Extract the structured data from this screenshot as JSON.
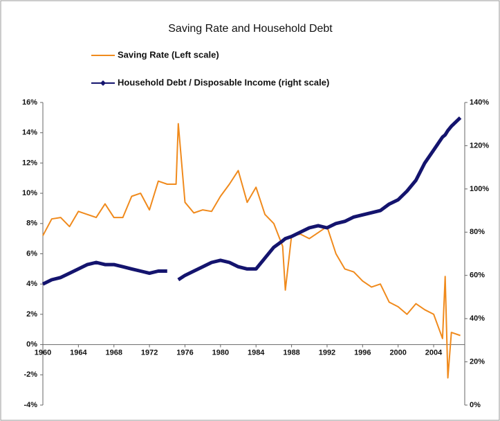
{
  "chart_data": {
    "type": "line",
    "title": "Saving Rate and Household Debt",
    "x": [
      1960,
      1961,
      1962,
      1963,
      1964,
      1965,
      1966,
      1967,
      1968,
      1969,
      1970,
      1971,
      1972,
      1973,
      1974,
      1975,
      1975.25,
      1976,
      1977,
      1978,
      1979,
      1980,
      1981,
      1982,
      1983,
      1984,
      1985,
      1986,
      1987,
      1987.3,
      1988,
      1989,
      1990,
      1991,
      1992,
      1993,
      1994,
      1995,
      1996,
      1997,
      1998,
      1999,
      2000,
      2001,
      2002,
      2003,
      2004,
      2005,
      2005.3,
      2005.6,
      2006,
      2007
    ],
    "xlim": [
      1960,
      2007.5
    ],
    "xticks": [
      1960,
      1964,
      1968,
      1972,
      1976,
      1980,
      1984,
      1988,
      1992,
      1996,
      2000,
      2004
    ],
    "ylim": [
      -4,
      16
    ],
    "yticks": [
      {
        "value": -4,
        "label": "-4%"
      },
      {
        "value": -2,
        "label": "-2%"
      },
      {
        "value": 0,
        "label": "0%"
      },
      {
        "value": 2,
        "label": "2%"
      },
      {
        "value": 4,
        "label": "4%"
      },
      {
        "value": 6,
        "label": "6%"
      },
      {
        "value": 8,
        "label": "8%"
      },
      {
        "value": 10,
        "label": "10%"
      },
      {
        "value": 12,
        "label": "12%"
      },
      {
        "value": 14,
        "label": "14%"
      },
      {
        "value": 16,
        "label": "16%"
      }
    ],
    "y2lim": [
      0,
      140
    ],
    "y2ticks": [
      {
        "value": 0,
        "label": "0%"
      },
      {
        "value": 20,
        "label": "20%"
      },
      {
        "value": 40,
        "label": "40%"
      },
      {
        "value": 60,
        "label": "60%"
      },
      {
        "value": 80,
        "label": "80%"
      },
      {
        "value": 100,
        "label": "100%"
      },
      {
        "value": 120,
        "label": "120%"
      },
      {
        "value": 140,
        "label": "140%"
      }
    ],
    "series": [
      {
        "name": "Saving Rate (Left scale)",
        "color": "#f08a1c",
        "values": [
          7.2,
          8.3,
          8.4,
          7.8,
          8.8,
          8.6,
          8.4,
          9.3,
          8.4,
          8.4,
          9.8,
          10.0,
          8.9,
          10.8,
          10.6,
          10.6,
          14.6,
          9.4,
          8.7,
          8.9,
          8.8,
          9.8,
          10.6,
          11.5,
          9.4,
          10.4,
          8.6,
          8.0,
          6.5,
          3.6,
          7.2,
          7.3,
          7.0,
          7.4,
          7.8,
          6.0,
          5.0,
          4.8,
          4.2,
          3.8,
          4.0,
          2.8,
          2.5,
          2.0,
          2.7,
          2.3,
          2.0,
          0.4,
          4.5,
          -2.2,
          0.8,
          0.6
        ]
      },
      {
        "name": "Household Debt / Disposable Income (right scale)",
        "color": "#14146e",
        "axis": "y2",
        "values": [
          56,
          58,
          59,
          61,
          63,
          65,
          66,
          65,
          65,
          64,
          63,
          62,
          61,
          62,
          62,
          null,
          58,
          60,
          62,
          64,
          66,
          67,
          66,
          64,
          63,
          63,
          68,
          73,
          76,
          77,
          78,
          80,
          82,
          83,
          82,
          84,
          85,
          87,
          88,
          89,
          90,
          93,
          95,
          99,
          104,
          112,
          118,
          124,
          125,
          127,
          129,
          133
        ]
      }
    ]
  }
}
